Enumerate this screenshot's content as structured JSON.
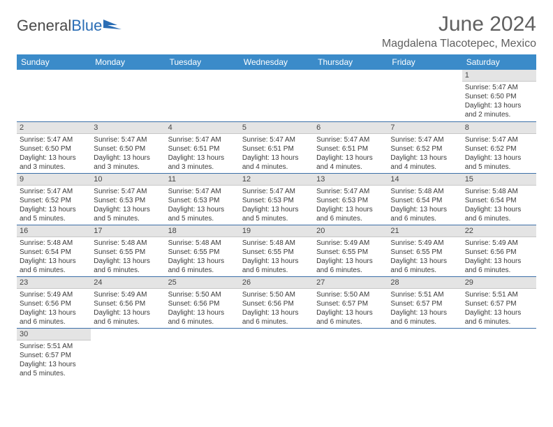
{
  "logo": {
    "part1": "General",
    "part2": "Blue"
  },
  "title": "June 2024",
  "location": "Magdalena Tlacotepec, Mexico",
  "colors": {
    "header_bg": "#3b8bc9",
    "header_text": "#ffffff",
    "daynum_bg": "#e4e4e4",
    "border": "#3b6fa8",
    "logo_blue": "#2a6db5"
  },
  "weekdays": [
    "Sunday",
    "Monday",
    "Tuesday",
    "Wednesday",
    "Thursday",
    "Friday",
    "Saturday"
  ],
  "leading_blanks": 6,
  "days": [
    {
      "n": 1,
      "sr": "5:47 AM",
      "ss": "6:50 PM",
      "dl": "13 hours and 2 minutes."
    },
    {
      "n": 2,
      "sr": "5:47 AM",
      "ss": "6:50 PM",
      "dl": "13 hours and 3 minutes."
    },
    {
      "n": 3,
      "sr": "5:47 AM",
      "ss": "6:50 PM",
      "dl": "13 hours and 3 minutes."
    },
    {
      "n": 4,
      "sr": "5:47 AM",
      "ss": "6:51 PM",
      "dl": "13 hours and 3 minutes."
    },
    {
      "n": 5,
      "sr": "5:47 AM",
      "ss": "6:51 PM",
      "dl": "13 hours and 4 minutes."
    },
    {
      "n": 6,
      "sr": "5:47 AM",
      "ss": "6:51 PM",
      "dl": "13 hours and 4 minutes."
    },
    {
      "n": 7,
      "sr": "5:47 AM",
      "ss": "6:52 PM",
      "dl": "13 hours and 4 minutes."
    },
    {
      "n": 8,
      "sr": "5:47 AM",
      "ss": "6:52 PM",
      "dl": "13 hours and 5 minutes."
    },
    {
      "n": 9,
      "sr": "5:47 AM",
      "ss": "6:52 PM",
      "dl": "13 hours and 5 minutes."
    },
    {
      "n": 10,
      "sr": "5:47 AM",
      "ss": "6:53 PM",
      "dl": "13 hours and 5 minutes."
    },
    {
      "n": 11,
      "sr": "5:47 AM",
      "ss": "6:53 PM",
      "dl": "13 hours and 5 minutes."
    },
    {
      "n": 12,
      "sr": "5:47 AM",
      "ss": "6:53 PM",
      "dl": "13 hours and 5 minutes."
    },
    {
      "n": 13,
      "sr": "5:47 AM",
      "ss": "6:53 PM",
      "dl": "13 hours and 6 minutes."
    },
    {
      "n": 14,
      "sr": "5:48 AM",
      "ss": "6:54 PM",
      "dl": "13 hours and 6 minutes."
    },
    {
      "n": 15,
      "sr": "5:48 AM",
      "ss": "6:54 PM",
      "dl": "13 hours and 6 minutes."
    },
    {
      "n": 16,
      "sr": "5:48 AM",
      "ss": "6:54 PM",
      "dl": "13 hours and 6 minutes."
    },
    {
      "n": 17,
      "sr": "5:48 AM",
      "ss": "6:55 PM",
      "dl": "13 hours and 6 minutes."
    },
    {
      "n": 18,
      "sr": "5:48 AM",
      "ss": "6:55 PM",
      "dl": "13 hours and 6 minutes."
    },
    {
      "n": 19,
      "sr": "5:48 AM",
      "ss": "6:55 PM",
      "dl": "13 hours and 6 minutes."
    },
    {
      "n": 20,
      "sr": "5:49 AM",
      "ss": "6:55 PM",
      "dl": "13 hours and 6 minutes."
    },
    {
      "n": 21,
      "sr": "5:49 AM",
      "ss": "6:55 PM",
      "dl": "13 hours and 6 minutes."
    },
    {
      "n": 22,
      "sr": "5:49 AM",
      "ss": "6:56 PM",
      "dl": "13 hours and 6 minutes."
    },
    {
      "n": 23,
      "sr": "5:49 AM",
      "ss": "6:56 PM",
      "dl": "13 hours and 6 minutes."
    },
    {
      "n": 24,
      "sr": "5:49 AM",
      "ss": "6:56 PM",
      "dl": "13 hours and 6 minutes."
    },
    {
      "n": 25,
      "sr": "5:50 AM",
      "ss": "6:56 PM",
      "dl": "13 hours and 6 minutes."
    },
    {
      "n": 26,
      "sr": "5:50 AM",
      "ss": "6:56 PM",
      "dl": "13 hours and 6 minutes."
    },
    {
      "n": 27,
      "sr": "5:50 AM",
      "ss": "6:57 PM",
      "dl": "13 hours and 6 minutes."
    },
    {
      "n": 28,
      "sr": "5:51 AM",
      "ss": "6:57 PM",
      "dl": "13 hours and 6 minutes."
    },
    {
      "n": 29,
      "sr": "5:51 AM",
      "ss": "6:57 PM",
      "dl": "13 hours and 6 minutes."
    },
    {
      "n": 30,
      "sr": "5:51 AM",
      "ss": "6:57 PM",
      "dl": "13 hours and 5 minutes."
    }
  ],
  "labels": {
    "sunrise": "Sunrise:",
    "sunset": "Sunset:",
    "daylight": "Daylight:"
  }
}
